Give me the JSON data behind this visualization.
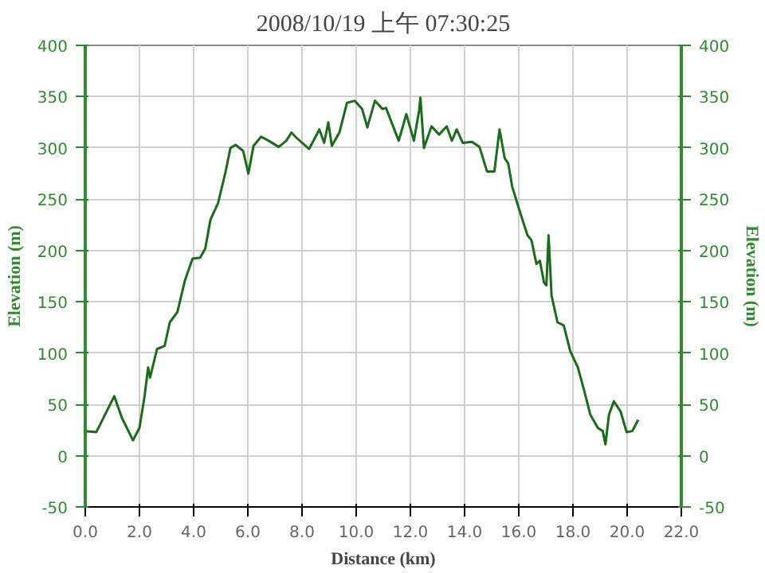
{
  "chart_data": {
    "type": "line",
    "title": "2008/10/19 上午 07:30:25",
    "xlabel": "Distance (km)",
    "ylabel": "Elevation (m)",
    "y2label": "Elevation (m)",
    "xlim": [
      0,
      22
    ],
    "xticks": [
      {
        "value": 0,
        "label": "0.0"
      },
      {
        "value": 2,
        "label": "2.0"
      },
      {
        "value": 4,
        "label": "4.0"
      },
      {
        "value": 6,
        "label": "6.0"
      },
      {
        "value": 8,
        "label": "8.0"
      },
      {
        "value": 10,
        "label": "10.0"
      },
      {
        "value": 12,
        "label": "12.0"
      },
      {
        "value": 14,
        "label": "14.0"
      },
      {
        "value": 16,
        "label": "16.0"
      },
      {
        "value": 18,
        "label": "18.0"
      },
      {
        "value": 20,
        "label": "20.0"
      },
      {
        "value": 22,
        "label": "22.0"
      }
    ],
    "ylim": [
      -50,
      400
    ],
    "yticks": [
      -50,
      0,
      50,
      100,
      150,
      200,
      250,
      300,
      350,
      400
    ],
    "y2lim": [
      -50,
      400
    ],
    "y2ticks": [
      -50,
      0,
      50,
      100,
      150,
      200,
      250,
      300,
      350,
      400
    ],
    "grid": true,
    "marker": "none",
    "line_style": "solid",
    "series": [
      {
        "color": "#1a6b1a",
        "x": [
          0,
          0.41,
          1.07,
          1.35,
          1.76,
          2.0,
          2.19,
          2.32,
          2.39,
          2.65,
          2.93,
          3.12,
          3.4,
          3.68,
          3.96,
          4.24,
          4.43,
          4.62,
          4.9,
          5.18,
          5.36,
          5.55,
          5.83,
          6.02,
          6.21,
          6.49,
          6.77,
          7.14,
          7.42,
          7.61,
          7.79,
          8.26,
          8.64,
          8.82,
          8.97,
          9.1,
          9.38,
          9.66,
          9.94,
          10.22,
          10.41,
          10.69,
          10.97,
          11.1,
          11.57,
          11.85,
          12.13,
          12.32,
          12.37,
          12.5,
          12.78,
          13.06,
          13.34,
          13.53,
          13.71,
          13.93,
          14.27,
          14.55,
          14.83,
          15.1,
          15.29,
          15.48,
          15.61,
          15.76,
          16.04,
          16.32,
          16.47,
          16.65,
          16.78,
          16.93,
          17.02,
          17.1,
          17.21,
          17.43,
          17.66,
          17.9,
          18.18,
          18.4,
          18.64,
          18.92,
          19.1,
          19.2,
          19.33,
          19.51,
          19.76,
          19.98,
          20.19,
          20.41
        ],
        "values": [
          24,
          23,
          58,
          37,
          15,
          27,
          58,
          86,
          76,
          104,
          107,
          130,
          140,
          171,
          192,
          193,
          202,
          230,
          246,
          277,
          300,
          303,
          297,
          275,
          302,
          311,
          307,
          301,
          307,
          315,
          310,
          299,
          318,
          305,
          325,
          302,
          315,
          344,
          346,
          338,
          320,
          346,
          338,
          339,
          307,
          333,
          307,
          336,
          349,
          300,
          321,
          313,
          321,
          307,
          318,
          305,
          306,
          301,
          277,
          277,
          318,
          290,
          285,
          262,
          238,
          215,
          210,
          187,
          190,
          169,
          166,
          215,
          156,
          130,
          127,
          102,
          86,
          65,
          40,
          27,
          24,
          11,
          40,
          53,
          43,
          23,
          24,
          35
        ]
      }
    ]
  }
}
